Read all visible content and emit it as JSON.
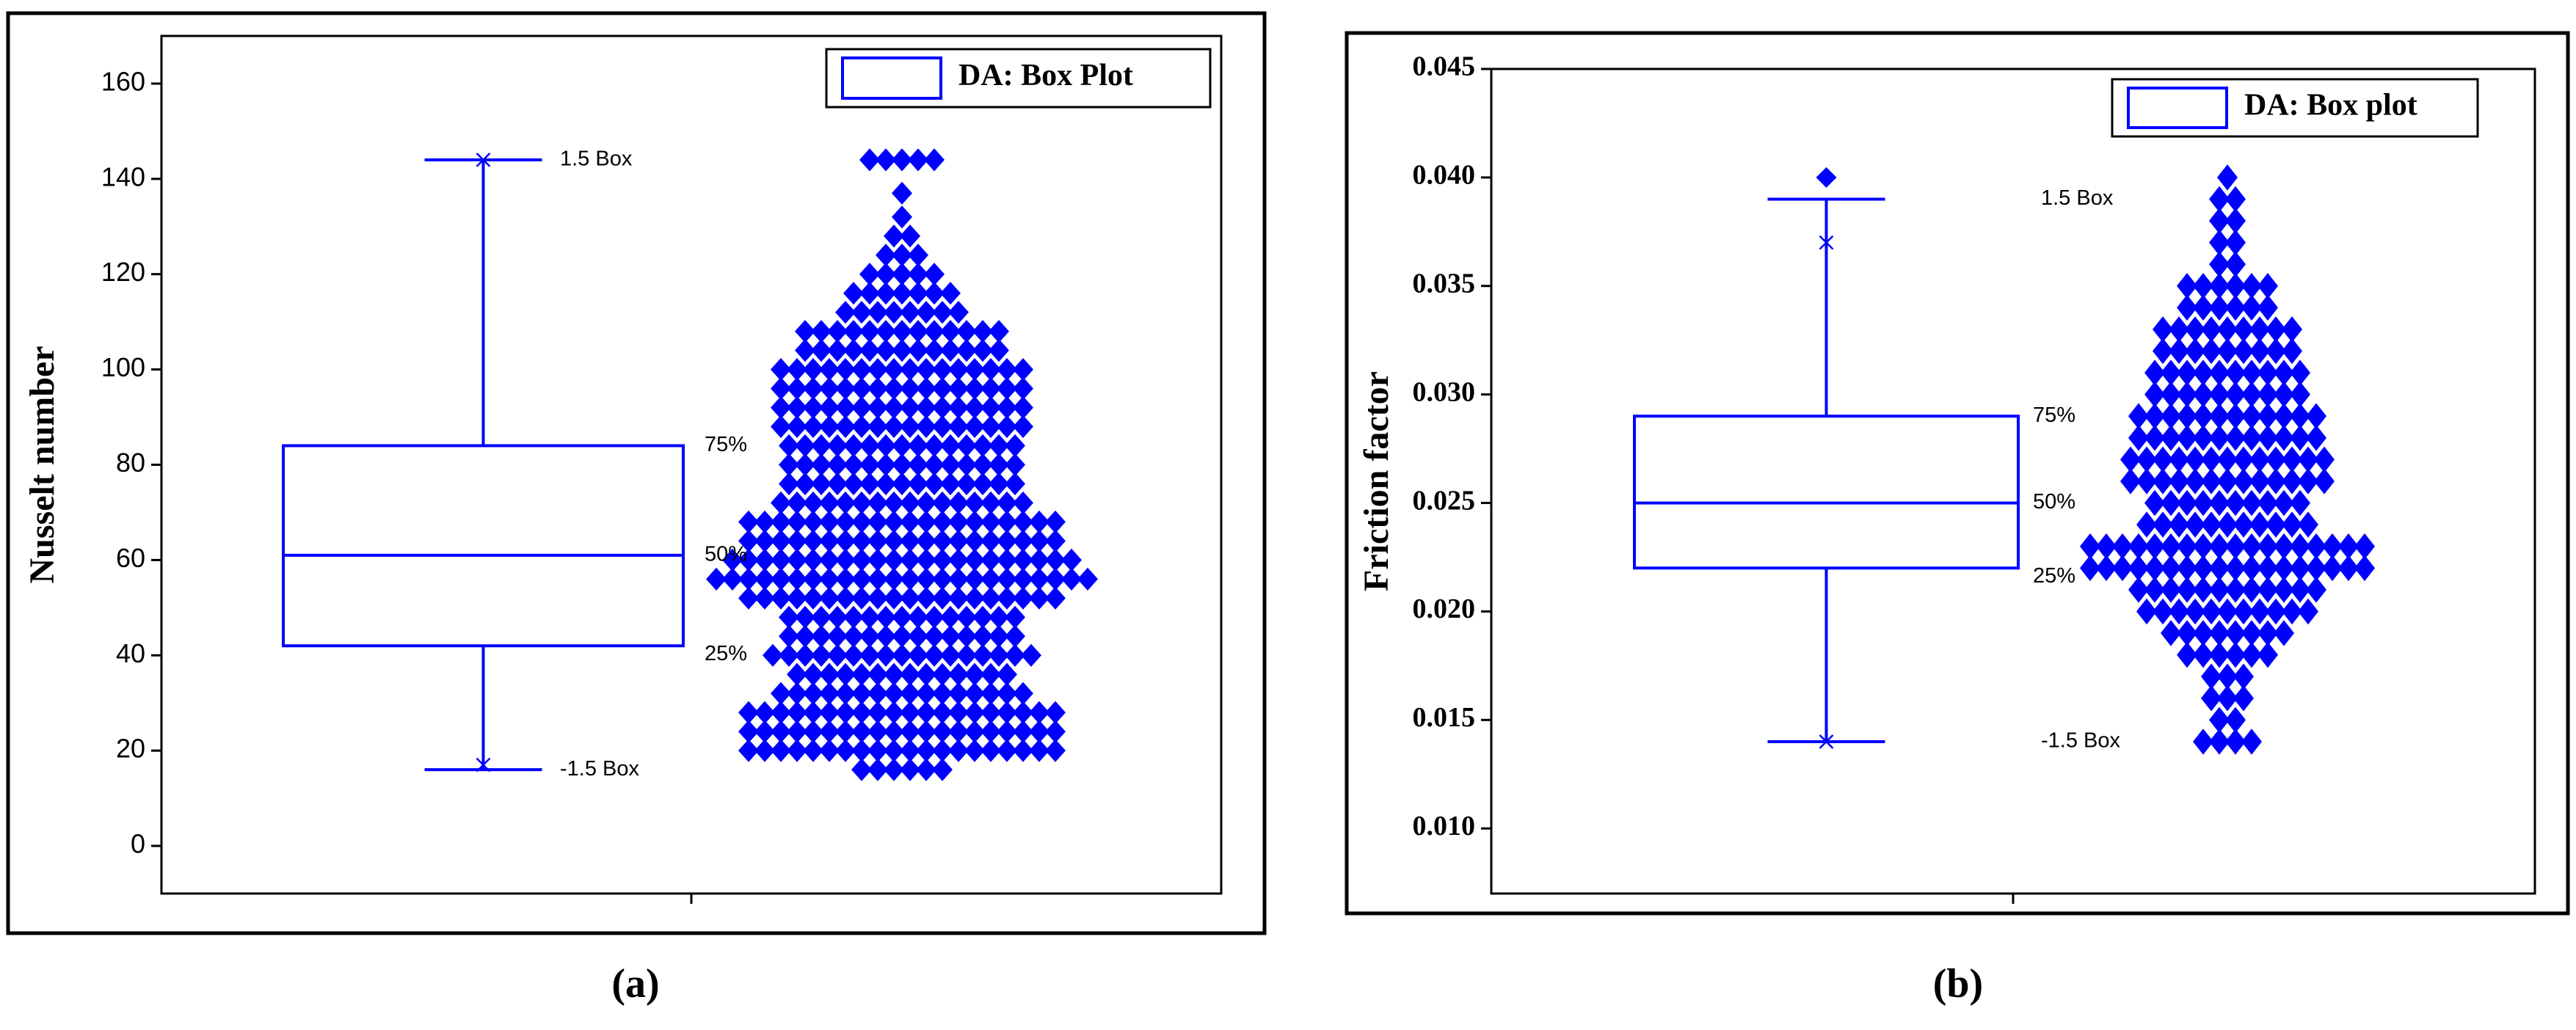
{
  "chart_data": [
    {
      "type": "box",
      "y_label": "Nusselt number",
      "legend": "DA: Box Plot",
      "caption": "(a)",
      "color": "#0000ff",
      "ylim": [
        -10,
        170
      ],
      "yticks": [
        0,
        20,
        40,
        60,
        80,
        100,
        120,
        140,
        160
      ],
      "stats": {
        "whisker_low": 16,
        "q1": 42,
        "median": 61,
        "q3": 84,
        "whisker_high": 144
      },
      "markers": [
        17,
        144
      ],
      "stat_labels": [
        "1.5 Box",
        "75%",
        "50%",
        "25%",
        "-1.5 Box"
      ],
      "swarm": {
        "y": [
          16,
          20,
          24,
          28,
          32,
          36,
          40,
          44,
          48,
          52,
          56,
          60,
          64,
          68,
          72,
          76,
          80,
          84,
          88,
          92,
          96,
          100,
          104,
          108,
          112,
          116,
          120,
          124,
          128,
          132,
          137,
          144
        ],
        "counts": [
          6,
          20,
          20,
          20,
          16,
          14,
          17,
          15,
          15,
          20,
          24,
          22,
          20,
          20,
          16,
          15,
          15,
          15,
          16,
          16,
          16,
          16,
          13,
          13,
          8,
          7,
          5,
          3,
          2,
          1,
          1,
          5
        ]
      }
    },
    {
      "type": "box",
      "y_label": "Friction factor",
      "legend": "DA: Box plot",
      "caption": "(b)",
      "color": "#0000ff",
      "ylim": [
        0.007,
        0.045
      ],
      "yticks": [
        {
          "value": 0.01,
          "label": "0.010"
        },
        {
          "value": 0.015,
          "label": "0.015"
        },
        {
          "value": 0.02,
          "label": "0.020"
        },
        {
          "value": 0.025,
          "label": "0.025"
        },
        {
          "value": 0.03,
          "label": "0.030"
        },
        {
          "value": 0.035,
          "label": "0.035"
        },
        {
          "value": 0.04,
          "label": "0.040"
        },
        {
          "value": 0.045,
          "label": "0.045"
        }
      ],
      "stats": {
        "whisker_low": 0.014,
        "q1": 0.022,
        "median": 0.025,
        "q3": 0.029,
        "whisker_high": 0.039
      },
      "markers": [
        0.014,
        0.037
      ],
      "outliers": [
        0.04
      ],
      "stat_labels": [
        "1.5 Box",
        "75%",
        "50%",
        "25%",
        "-1.5 Box"
      ],
      "swarm": {
        "y": [
          0.014,
          0.015,
          0.016,
          0.017,
          0.018,
          0.019,
          0.02,
          0.021,
          0.022,
          0.023,
          0.024,
          0.025,
          0.026,
          0.027,
          0.028,
          0.029,
          0.03,
          0.031,
          0.032,
          0.033,
          0.034,
          0.035,
          0.036,
          0.037,
          0.038,
          0.039,
          0.04
        ],
        "counts": [
          4,
          2,
          3,
          3,
          6,
          8,
          11,
          12,
          18,
          18,
          11,
          10,
          13,
          13,
          12,
          12,
          10,
          10,
          9,
          9,
          6,
          6,
          2,
          2,
          2,
          2,
          1
        ]
      }
    }
  ]
}
